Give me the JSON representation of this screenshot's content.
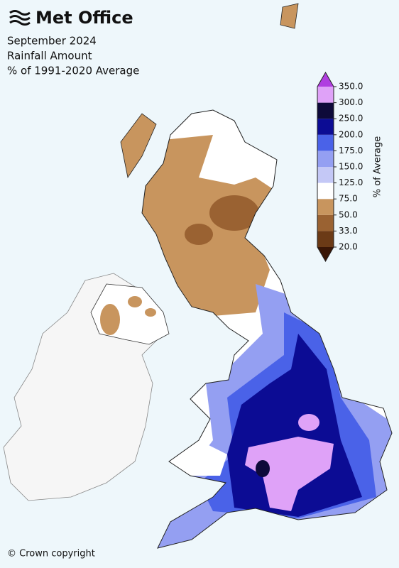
{
  "header": {
    "brand": "Met Office",
    "title": "September 2024",
    "subtitle": "Rainfall Amount",
    "description": "% of 1991-2020 Average"
  },
  "legend": {
    "label": "% of Average",
    "ticks": [
      {
        "value": 20,
        "label": "20.0"
      },
      {
        "value": 33,
        "label": "33.0"
      },
      {
        "value": 50,
        "label": "50.0"
      },
      {
        "value": 75,
        "label": "75.0"
      },
      {
        "value": 125,
        "label": "125.0"
      },
      {
        "value": 150,
        "label": "150.0"
      },
      {
        "value": 175,
        "label": "175.0"
      },
      {
        "value": 200,
        "label": "200.0"
      },
      {
        "value": 250,
        "label": "250.0"
      },
      {
        "value": 300,
        "label": "300.0"
      },
      {
        "value": 350,
        "label": "350.0"
      }
    ],
    "colors": [
      "#6b3a16",
      "#9a6232",
      "#c8955e",
      "#ffffff",
      "#c4c8f6",
      "#949ff2",
      "#4a62e8",
      "#0c0c94",
      "#0e0a3a",
      "#dfa2f8"
    ],
    "under_color": "#3a1606",
    "over_color": "#b03ee0"
  },
  "footer": {
    "copyright": "© Crown copyright"
  }
}
